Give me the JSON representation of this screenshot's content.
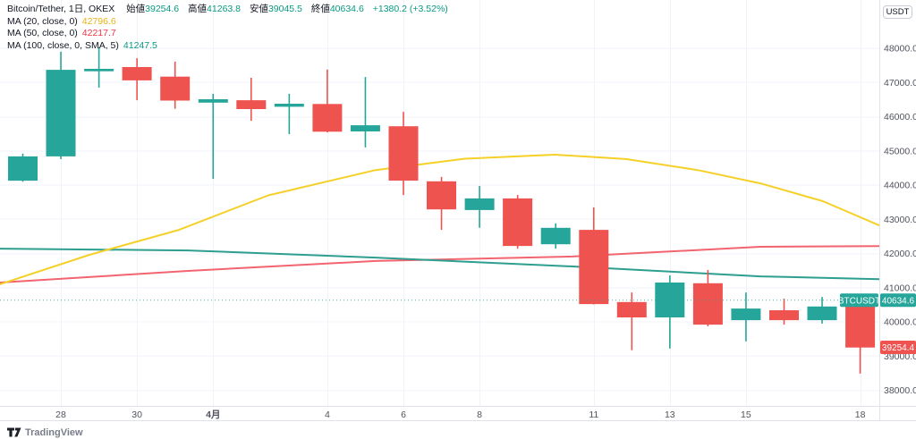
{
  "header": {
    "title": "Bitcoin/Tether, 1日, OKEX",
    "ohlc": [
      {
        "label": "始値",
        "value": "39254.6"
      },
      {
        "label": "高値",
        "value": "41263.8"
      },
      {
        "label": "安値",
        "value": "39045.5"
      },
      {
        "label": "終値",
        "value": "40634.6"
      }
    ],
    "change": "+1380.2 (+3.52%)",
    "indicators": [
      {
        "label": "MA (20, close, 0)",
        "value": "42796.6",
        "color": "#e8b411",
        "line_color": "#f5d028"
      },
      {
        "label": "MA (50, close, 0)",
        "value": "42217.7",
        "color": "#f23645",
        "line_color": "#f2646f"
      },
      {
        "label": "MA (100, close, 0, SMA, 5)",
        "value": "41247.5",
        "color": "#089981",
        "line_color": "#2d9e8f"
      }
    ]
  },
  "colors": {
    "up_text": "#089981",
    "up_candle": "#26a69a",
    "down_candle": "#ef5350",
    "grid": "#f0f3fa",
    "border": "#e0e3eb",
    "axis_text": "#50535e"
  },
  "price_axis": {
    "currency_button": "USDT",
    "ticks": [
      48000,
      47000,
      46000,
      45000,
      44000,
      43000,
      42000,
      41000,
      40000,
      39000,
      38000
    ],
    "symbol_badge": {
      "text": "BTCUSDT",
      "bg": "#26a69a"
    },
    "current_price_badge": {
      "text": "40634.6",
      "bg": "#26a69a",
      "price": 40634.6
    },
    "prev_close_badge": {
      "text": "39254.4",
      "bg": "#ef5350",
      "price": 39254.4
    }
  },
  "time_axis": {
    "ticks": [
      {
        "label": "28",
        "index": 1,
        "bold": false
      },
      {
        "label": "30",
        "index": 3,
        "bold": false
      },
      {
        "label": "4月",
        "index": 5,
        "bold": true
      },
      {
        "label": "4",
        "index": 8,
        "bold": false
      },
      {
        "label": "6",
        "index": 10,
        "bold": false
      },
      {
        "label": "8",
        "index": 12,
        "bold": false
      },
      {
        "label": "11",
        "index": 15,
        "bold": false
      },
      {
        "label": "13",
        "index": 17,
        "bold": false
      },
      {
        "label": "15",
        "index": 19,
        "bold": false
      },
      {
        "label": "18",
        "index": 22,
        "bold": false
      }
    ]
  },
  "footer": {
    "logo_text": "TradingView"
  },
  "chart_data": {
    "type": "candlestick",
    "title": "Bitcoin/Tether, 1 day, OKEX",
    "xlabel": "",
    "ylabel": "USDT",
    "ylim": [
      37550,
      49400
    ],
    "grid": true,
    "x": [
      "3/27",
      "3/28",
      "3/29",
      "3/30",
      "3/31",
      "4/1",
      "4/2",
      "4/3",
      "4/4",
      "4/5",
      "4/6",
      "4/7",
      "4/8",
      "4/9",
      "4/10",
      "4/11",
      "4/12",
      "4/13",
      "4/14",
      "4/15",
      "4/16",
      "4/17",
      "4/18"
    ],
    "ohlc": [
      [
        44130,
        44920,
        44100,
        44840
      ],
      [
        44840,
        47900,
        44760,
        47370
      ],
      [
        47330,
        48030,
        46850,
        47400
      ],
      [
        47450,
        47710,
        46480,
        47060
      ],
      [
        47170,
        47610,
        46230,
        46470
      ],
      [
        46410,
        46670,
        44180,
        46510
      ],
      [
        46480,
        47140,
        45880,
        46220
      ],
      [
        46290,
        46670,
        45490,
        46380
      ],
      [
        46370,
        47380,
        45540,
        45560
      ],
      [
        45570,
        47160,
        45100,
        45750
      ],
      [
        45720,
        46140,
        43710,
        44130
      ],
      [
        44110,
        44240,
        42690,
        43290
      ],
      [
        43270,
        43970,
        42750,
        43610
      ],
      [
        43610,
        43710,
        42140,
        42220
      ],
      [
        42270,
        42880,
        42140,
        42750
      ],
      [
        42690,
        43350,
        40510,
        40520
      ],
      [
        40580,
        40860,
        39170,
        40130
      ],
      [
        40130,
        41360,
        39220,
        41150
      ],
      [
        41130,
        41520,
        39870,
        39920
      ],
      [
        40050,
        40860,
        39430,
        40390
      ],
      [
        40340,
        40680,
        39920,
        40050
      ],
      [
        40050,
        40730,
        39950,
        40450
      ],
      [
        40450,
        40520,
        38490,
        39250
      ]
    ],
    "price_line": {
      "price": 40634.6,
      "color": "#26a69a",
      "style": "dotted"
    },
    "series": [
      {
        "name": "MA20",
        "color": "#f5d028",
        "points": [
          [
            -0.6,
            41100
          ],
          [
            1.75,
            41960
          ],
          [
            4.1,
            42690
          ],
          [
            6.45,
            43700
          ],
          [
            9.27,
            44440
          ],
          [
            11.62,
            44770
          ],
          [
            13.97,
            44890
          ],
          [
            15.85,
            44760
          ],
          [
            17.73,
            44440
          ],
          [
            19.38,
            44050
          ],
          [
            21.02,
            43530
          ],
          [
            22.5,
            42820
          ]
        ]
      },
      {
        "name": "MA50",
        "color": "#f2646f",
        "points": [
          [
            -0.6,
            41150
          ],
          [
            4.34,
            41490
          ],
          [
            9.27,
            41780
          ],
          [
            14.44,
            41910
          ],
          [
            19.38,
            42195
          ],
          [
            22.5,
            42218
          ]
        ]
      },
      {
        "name": "MA100",
        "color": "#2d9e8f",
        "points": [
          [
            -0.6,
            42140
          ],
          [
            4.34,
            42090
          ],
          [
            9.27,
            41880
          ],
          [
            14.44,
            41620
          ],
          [
            19.38,
            41330
          ],
          [
            22.5,
            41247
          ]
        ]
      }
    ]
  }
}
